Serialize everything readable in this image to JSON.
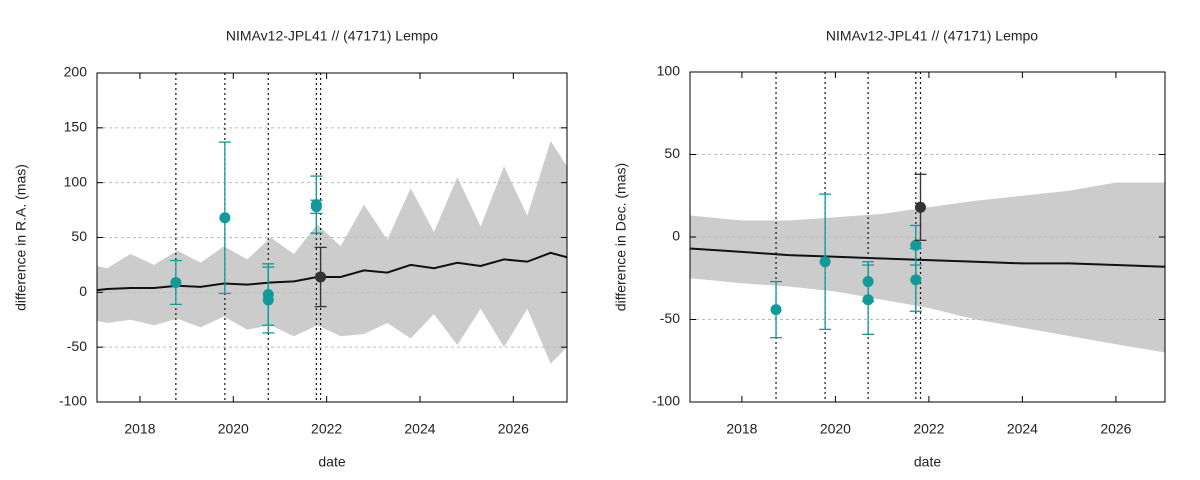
{
  "chart_data": [
    {
      "type": "scatter",
      "title": "NIMAv12-JPL41 // (47171) Lempo",
      "x_label": "date",
      "y_label": "difference in R.A. (mas)",
      "xlim": [
        2017.08,
        2027.15
      ],
      "ylim": [
        -100,
        200
      ],
      "xticks": [
        2018,
        2020,
        2022,
        2024,
        2026
      ],
      "yticks": [
        -100,
        -50,
        0,
        50,
        100,
        150,
        200
      ],
      "grid": true,
      "band": {
        "color": "#cccccc",
        "x": [
          2017.08,
          2017.3,
          2017.8,
          2018.3,
          2018.8,
          2019.3,
          2019.8,
          2020.3,
          2020.8,
          2021.3,
          2021.8,
          2022.3,
          2022.8,
          2023.3,
          2023.8,
          2024.3,
          2024.8,
          2025.3,
          2025.8,
          2026.3,
          2026.8,
          2027.15
        ],
        "upper": [
          24,
          22,
          35,
          25,
          38,
          27,
          42,
          30,
          50,
          35,
          62,
          42,
          80,
          48,
          95,
          55,
          105,
          60,
          115,
          70,
          138,
          115
        ],
        "lower": [
          -26,
          -28,
          -25,
          -30,
          -24,
          -32,
          -22,
          -34,
          -30,
          -40,
          -30,
          -40,
          -38,
          -28,
          -42,
          -20,
          -48,
          -15,
          -50,
          -15,
          -65,
          -50
        ]
      },
      "line": {
        "color": "#111111",
        "x": [
          2017.08,
          2017.3,
          2017.8,
          2018.3,
          2018.8,
          2019.3,
          2019.8,
          2020.3,
          2020.8,
          2021.3,
          2021.8,
          2022.3,
          2022.8,
          2023.3,
          2023.8,
          2024.3,
          2024.8,
          2025.3,
          2025.8,
          2026.3,
          2026.8,
          2027.15
        ],
        "values": [
          2,
          3,
          4,
          4,
          6,
          5,
          8,
          7,
          9,
          10,
          14,
          14,
          20,
          18,
          25,
          22,
          27,
          24,
          30,
          28,
          36,
          32
        ]
      },
      "observations": [
        2018.77,
        2019.82,
        2020.75,
        2021.78,
        2021.87
      ],
      "points": {
        "color": "#109a9a",
        "x": [
          2018.77,
          2019.82,
          2020.75,
          2020.75,
          2021.78,
          2021.78
        ],
        "values": [
          9,
          68,
          -2,
          -7,
          80,
          78
        ],
        "errors": [
          20,
          69,
          28,
          30,
          26,
          6
        ]
      },
      "highlight": {
        "color": "#333333",
        "x": [
          2021.87
        ],
        "values": [
          14
        ],
        "errors": [
          27
        ]
      }
    },
    {
      "type": "scatter",
      "title": "NIMAv12-JPL41 // (47171) Lempo",
      "x_label": "date",
      "y_label": "difference in Dec. (mas)",
      "xlim": [
        2016.89,
        2027.05
      ],
      "ylim": [
        -100,
        100
      ],
      "xticks": [
        2018,
        2020,
        2022,
        2024,
        2026
      ],
      "yticks": [
        -100,
        -50,
        0,
        50,
        100
      ],
      "grid": true,
      "band": {
        "color": "#cccccc",
        "x": [
          2016.89,
          2018,
          2019,
          2020,
          2021,
          2022,
          2023,
          2024,
          2025,
          2026,
          2027.05
        ],
        "upper": [
          13,
          10,
          10,
          12,
          14,
          18,
          22,
          25,
          28,
          33,
          33
        ],
        "lower": [
          -25,
          -28,
          -30,
          -33,
          -38,
          -43,
          -50,
          -55,
          -60,
          -65,
          -70
        ]
      },
      "line": {
        "color": "#111111",
        "x": [
          2016.89,
          2018,
          2019,
          2020,
          2021,
          2022,
          2023,
          2024,
          2025,
          2026,
          2027.05
        ],
        "values": [
          -7,
          -9,
          -11,
          -12,
          -13,
          -14,
          -15,
          -16,
          -16,
          -17,
          -18
        ]
      },
      "observations": [
        2018.73,
        2019.78,
        2020.7,
        2021.72,
        2021.82
      ],
      "points": {
        "color": "#109a9a",
        "x": [
          2018.73,
          2019.78,
          2020.7,
          2020.7,
          2021.72,
          2021.72
        ],
        "values": [
          -44,
          -15,
          -27,
          -38,
          -5,
          -26
        ],
        "errors": [
          17,
          41,
          12,
          21,
          12,
          19
        ]
      },
      "highlight": {
        "color": "#333333",
        "x": [
          2021.82
        ],
        "values": [
          18
        ],
        "errors": [
          20
        ]
      }
    }
  ]
}
